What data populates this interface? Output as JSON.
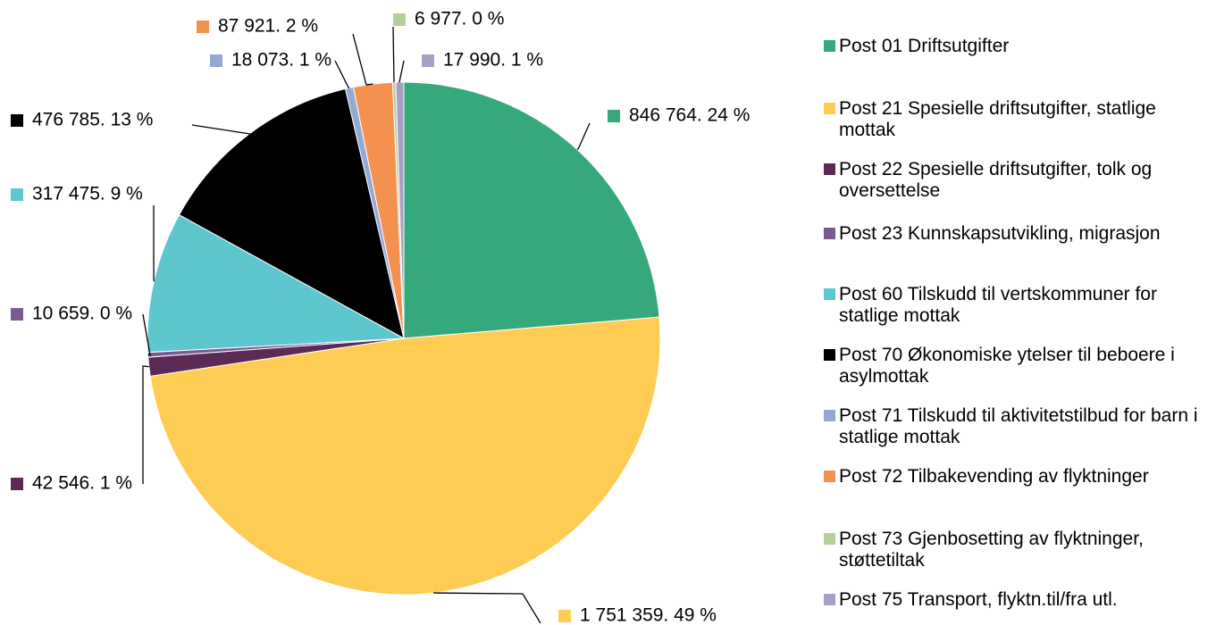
{
  "chart_data": {
    "type": "pie",
    "categories": [
      "Post 01 Driftsutgifter",
      "Post 21 Spesielle driftsutgifter, statlige mottak",
      "Post 22 Spesielle driftsutgifter, tolk og oversettelse",
      "Post 23 Kunnskapsutvikling, migrasjon",
      "Post 60 Tilskudd til vertskommuner for statlige mottak",
      "Post 70 Økonomiske ytelser til beboere i asylmottak",
      "Post 71 Tilskudd til aktivitetstilbud for  barn i statlige mottak",
      "Post 72 Tilbakevending av flyktninger",
      "Post 73 Gjenbosetting av flyktninger, støttetiltak",
      "Post 75 Transport, flyktn.til/fra utl."
    ],
    "values": [
      846764,
      1751359,
      42546,
      10659,
      317475,
      476785,
      18073,
      87921,
      6977,
      17990
    ],
    "value_labels": [
      "846 764. 24 %",
      "1 751 359. 49 %",
      "42 546. 1 %",
      "10 659. 0 %",
      "317 475. 9 %",
      "476 785. 13 %",
      "18 073. 1 %",
      "87 921. 2 %",
      "6 977. 0 %",
      "17 990. 1 %"
    ],
    "colors": [
      "#35a97c",
      "#fecc53",
      "#5c2a55",
      "#7a5a93",
      "#5ec6cf",
      "#000000",
      "#93a9d3",
      "#f59150",
      "#b5d09a",
      "#a89ec6"
    ],
    "legend": "right"
  }
}
